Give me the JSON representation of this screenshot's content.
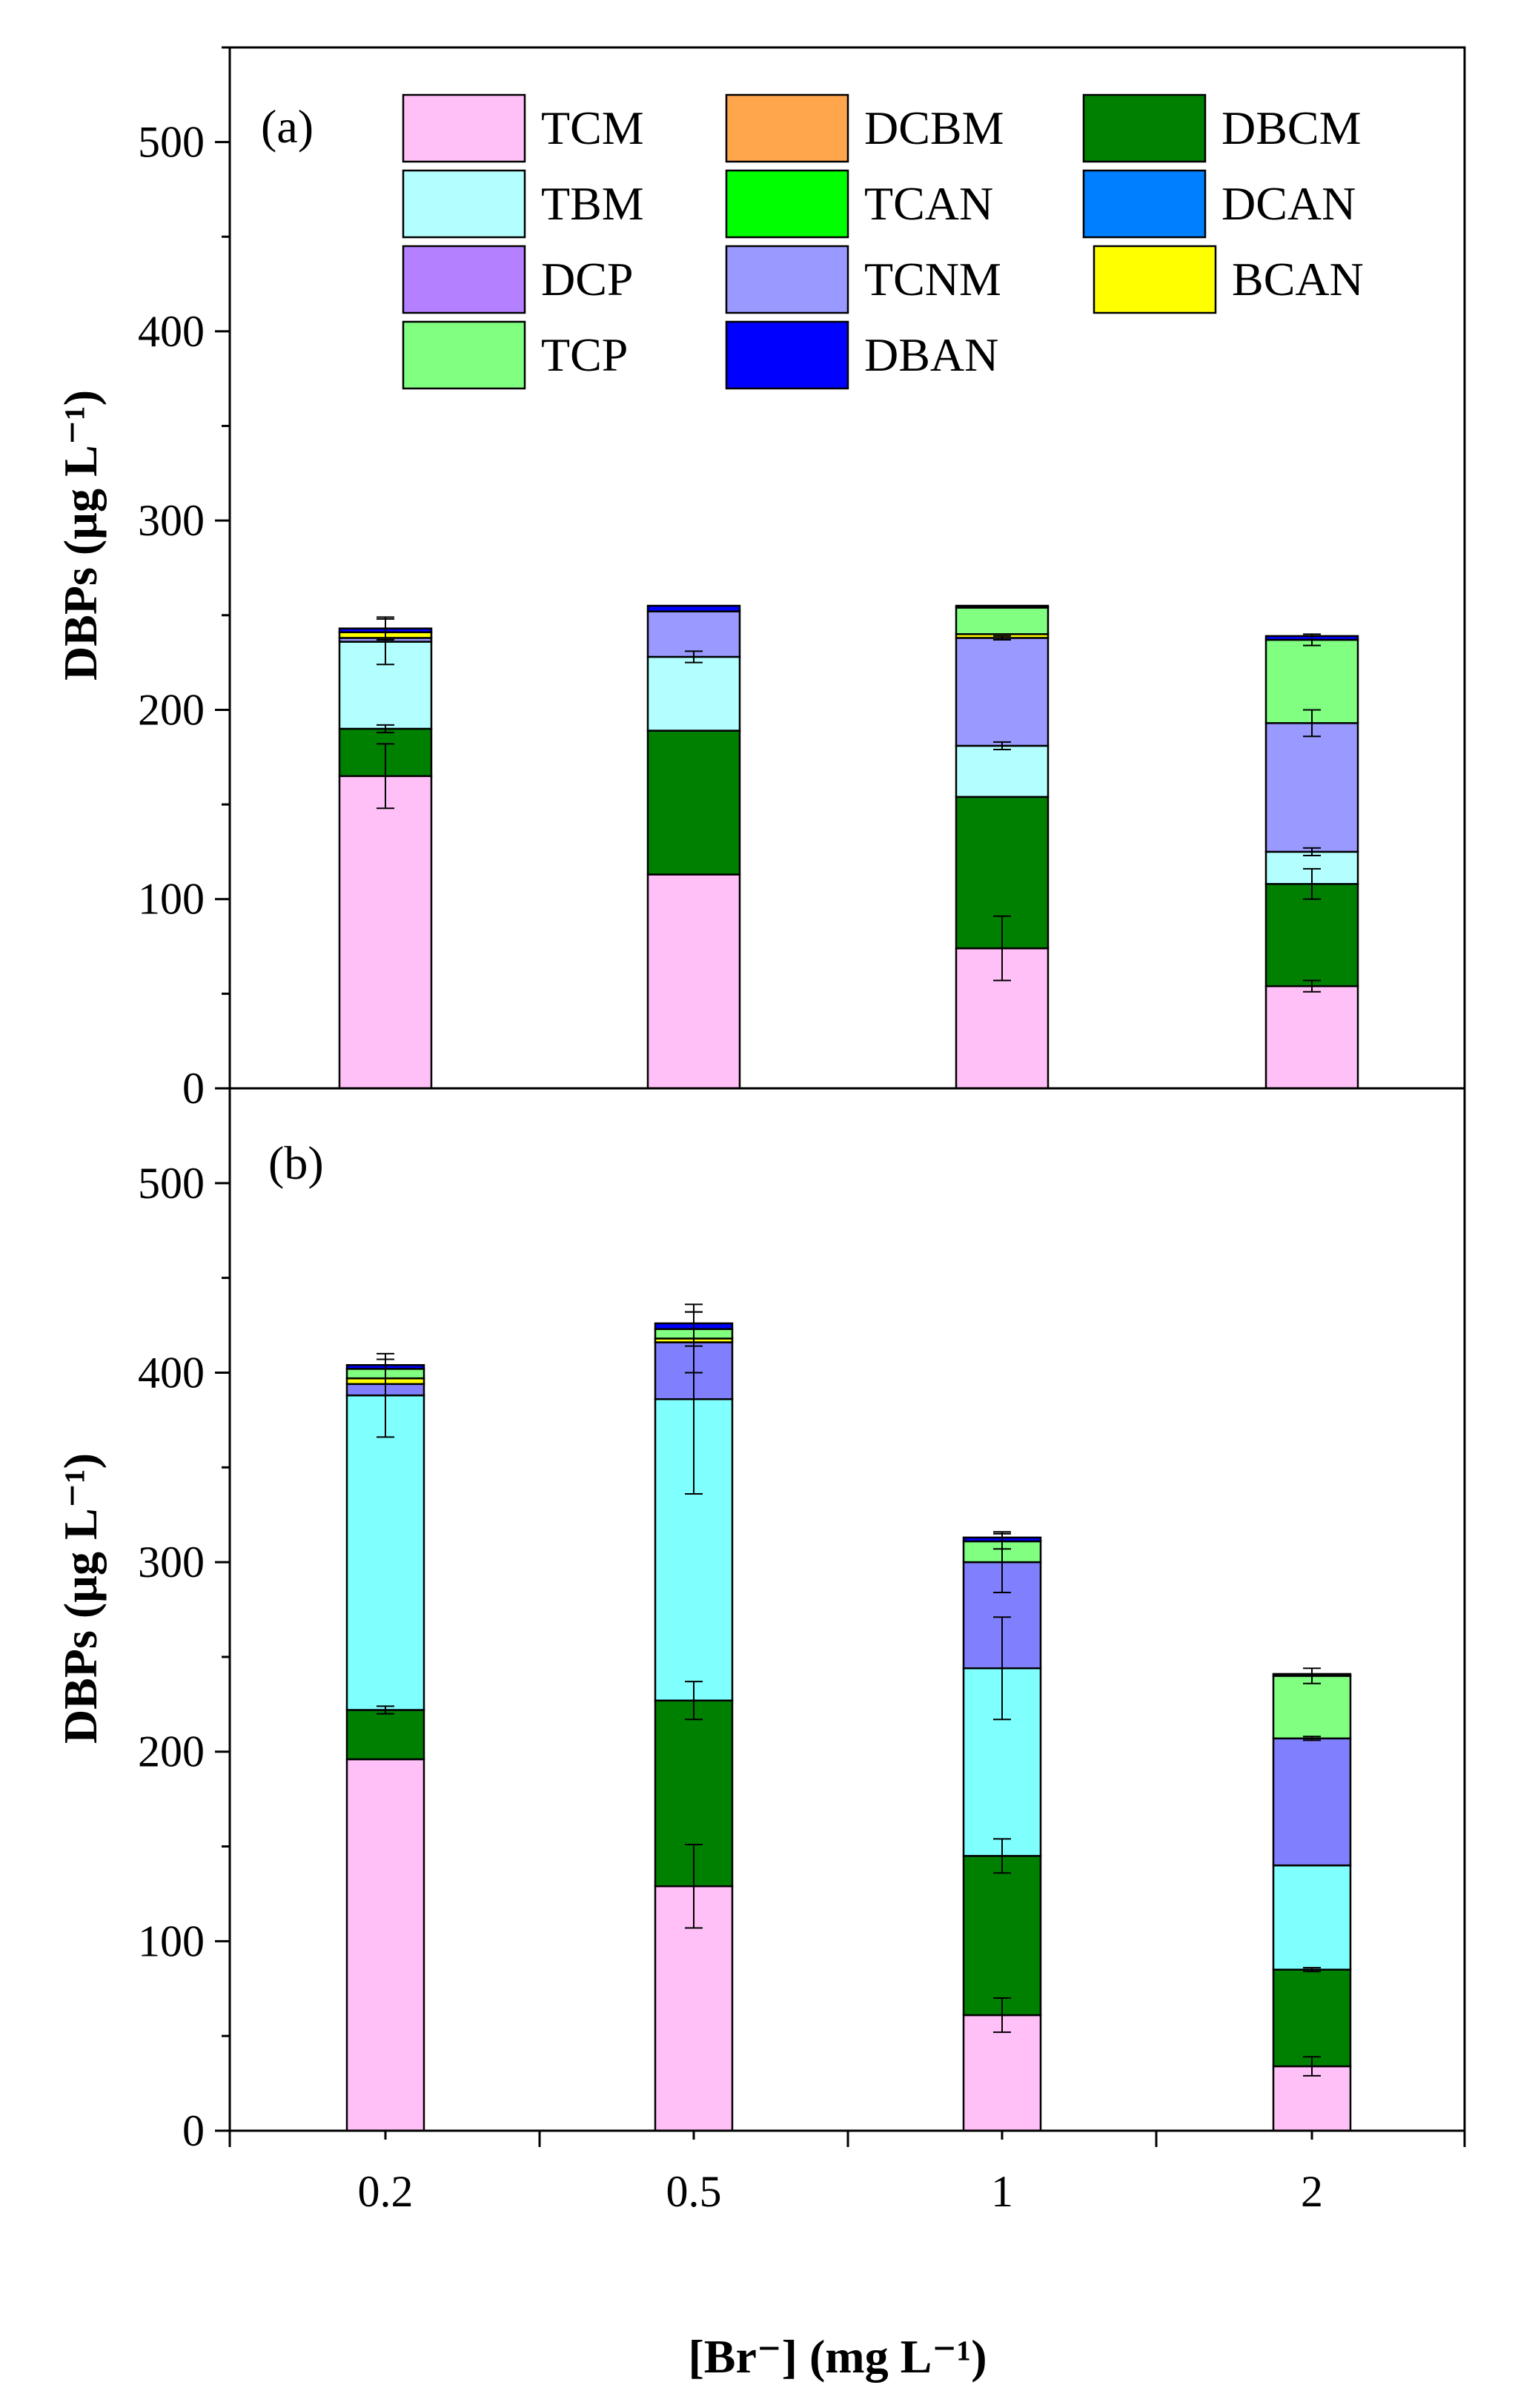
{
  "chart_data": {
    "type": "bar",
    "stacked": true,
    "categories": [
      "0.2",
      "0.5",
      "1",
      "2"
    ],
    "xlabel": "[Br⁻] (mg L⁻¹)",
    "legend_placement": "top",
    "legend": [
      {
        "name": "TCM",
        "color": "#ffc0f8"
      },
      {
        "name": "DCBM",
        "color": "#ffa64d"
      },
      {
        "name": "DBCM",
        "color": "#008000"
      },
      {
        "name": "TBM",
        "color": "#b3ffff"
      },
      {
        "name": "TCAN",
        "color": "#00ff00"
      },
      {
        "name": "DCAN",
        "color": "#0080ff"
      },
      {
        "name": "DCP",
        "color": "#b580ff"
      },
      {
        "name": "TCNM",
        "color": "#9999ff"
      },
      {
        "name": "BCAN",
        "color": "#ffff00"
      },
      {
        "name": "TCP",
        "color": "#80ff80"
      },
      {
        "name": "DBAN",
        "color": "#0000ff"
      }
    ],
    "panels": [
      {
        "label": "(a)",
        "ylabel": "DBPs (µg L⁻¹)",
        "ylim": [
          0,
          550
        ],
        "yticks": [
          0,
          100,
          200,
          300,
          400,
          500
        ],
        "series": [
          {
            "name": "TCM",
            "color": "#ffc0f8",
            "values": [
              165,
              113,
              74,
              54
            ],
            "errors": [
              17,
              0,
              17,
              3
            ]
          },
          {
            "name": "DCBM",
            "color": "#ffa64d",
            "values": [
              0,
              0,
              0,
              0
            ],
            "errors": [
              0,
              0,
              0,
              0
            ]
          },
          {
            "name": "DBCM",
            "color": "#008000",
            "values": [
              25,
              76,
              80,
              54
            ],
            "errors": [
              2,
              0,
              0,
              8
            ]
          },
          {
            "name": "TBM",
            "color": "#b3ffff",
            "values": [
              46,
              39,
              27,
              17
            ],
            "errors": [
              12,
              3,
              2,
              2
            ]
          },
          {
            "name": "TCAN",
            "color": "#00ff00",
            "values": [
              0,
              0,
              0,
              0
            ],
            "errors": [
              0,
              0,
              0,
              0
            ]
          },
          {
            "name": "DCAN",
            "color": "#0080ff",
            "values": [
              0,
              0,
              0,
              0
            ],
            "errors": [
              0,
              0,
              0,
              0
            ]
          },
          {
            "name": "DCP",
            "color": "#b580ff",
            "values": [
              0,
              0,
              0,
              0
            ],
            "errors": [
              0,
              0,
              0,
              0
            ]
          },
          {
            "name": "TCNM",
            "color": "#9999ff",
            "values": [
              2,
              24,
              57,
              68
            ],
            "errors": [
              0,
              0,
              1,
              7
            ]
          },
          {
            "name": "BCAN",
            "color": "#ffff00",
            "values": [
              3,
              0,
              2,
              0
            ],
            "errors": [
              0,
              0,
              0,
              0
            ]
          },
          {
            "name": "TCP",
            "color": "#80ff80",
            "values": [
              0,
              0,
              14,
              44
            ],
            "errors": [
              0,
              0,
              0,
              3
            ]
          },
          {
            "name": "DBAN",
            "color": "#0000ff",
            "values": [
              2,
              3,
              1,
              2
            ],
            "errors": [
              6,
              0,
              0,
              0
            ]
          }
        ]
      },
      {
        "label": "(b)",
        "ylabel": "DBPs (µg L⁻¹)",
        "ylim": [
          0,
          550
        ],
        "yticks": [
          0,
          100,
          200,
          300,
          400,
          500
        ],
        "series": [
          {
            "name": "TCM",
            "color": "#ffc0f8",
            "values": [
              196,
              129,
              61,
              34
            ],
            "errors": [
              0,
              22,
              9,
              5
            ]
          },
          {
            "name": "DCBM",
            "color": "#ffa64d",
            "values": [
              0,
              0,
              0,
              0
            ],
            "errors": [
              0,
              0,
              0,
              0
            ]
          },
          {
            "name": "DBCM",
            "color": "#008000",
            "values": [
              26,
              98,
              84,
              51
            ],
            "errors": [
              2,
              10,
              9,
              1
            ]
          },
          {
            "name": "TBM",
            "color": "#80ffff",
            "values": [
              166,
              159,
              99,
              55
            ],
            "errors": [
              22,
              50,
              27,
              0
            ]
          },
          {
            "name": "TCAN",
            "color": "#00ff00",
            "values": [
              0,
              0,
              0,
              0
            ],
            "errors": [
              0,
              0,
              0,
              0
            ]
          },
          {
            "name": "DCAN",
            "color": "#0080ff",
            "values": [
              0,
              0,
              0,
              0
            ],
            "errors": [
              0,
              0,
              0,
              0
            ]
          },
          {
            "name": "DCP",
            "color": "#b580ff",
            "values": [
              0,
              0,
              0,
              0
            ],
            "errors": [
              0,
              0,
              0,
              0
            ]
          },
          {
            "name": "TCNM",
            "color": "#8080ff",
            "values": [
              6,
              30,
              56,
              67
            ],
            "errors": [
              0,
              16,
              16,
              1
            ]
          },
          {
            "name": "BCAN",
            "color": "#ffff00",
            "values": [
              3,
              2,
              0,
              0
            ],
            "errors": [
              0,
              0,
              0,
              0
            ]
          },
          {
            "name": "TCP",
            "color": "#80ff80",
            "values": [
              5,
              5,
              11,
              33
            ],
            "errors": [
              5,
              9,
              4,
              4
            ]
          },
          {
            "name": "DBAN",
            "color": "#0000ff",
            "values": [
              2,
              3,
              2,
              1
            ],
            "errors": [
              0,
              0,
              0,
              0
            ]
          }
        ]
      }
    ]
  }
}
